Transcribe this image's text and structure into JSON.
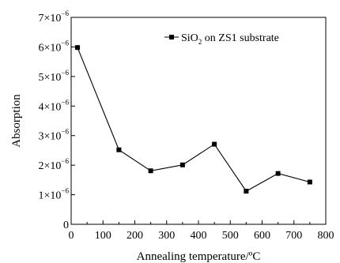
{
  "chart_data": {
    "type": "line",
    "title": "",
    "xlabel": "Annealing temperature/ºC",
    "ylabel": "Absorption",
    "xlim": [
      0,
      800
    ],
    "ylim": [
      0,
      7e-06
    ],
    "x_ticks": [
      0,
      100,
      200,
      300,
      400,
      500,
      600,
      700,
      800
    ],
    "x_tick_labels": [
      "0",
      "100",
      "200",
      "300",
      "400",
      "500",
      "600",
      "700",
      "800"
    ],
    "y_ticks": [
      0,
      1e-06,
      2e-06,
      3e-06,
      4e-06,
      5e-06,
      6e-06,
      7e-06
    ],
    "y_tick_labels": [
      {
        "mantissa": "0",
        "exponent": ""
      },
      {
        "mantissa": "1×10",
        "exponent": "−6"
      },
      {
        "mantissa": "2×10",
        "exponent": "−6"
      },
      {
        "mantissa": "3×10",
        "exponent": "−6"
      },
      {
        "mantissa": "4×10",
        "exponent": "−6"
      },
      {
        "mantissa": "5×10",
        "exponent": "−6"
      },
      {
        "mantissa": "6×10",
        "exponent": "−6"
      },
      {
        "mantissa": "7×10",
        "exponent": "−6"
      }
    ],
    "grid": false,
    "legend_position": "top-right",
    "series": [
      {
        "name_parts": {
          "pre": "SiO",
          "sub": "2",
          "post": " on ZS1 substrate"
        },
        "marker": "square",
        "color": "#000000",
        "x": [
          20,
          150,
          250,
          350,
          450,
          550,
          650,
          750
        ],
        "y": [
          5.98e-06,
          2.52e-06,
          1.81e-06,
          2.01e-06,
          2.71e-06,
          1.12e-06,
          1.72e-06,
          1.43e-06
        ]
      }
    ]
  }
}
